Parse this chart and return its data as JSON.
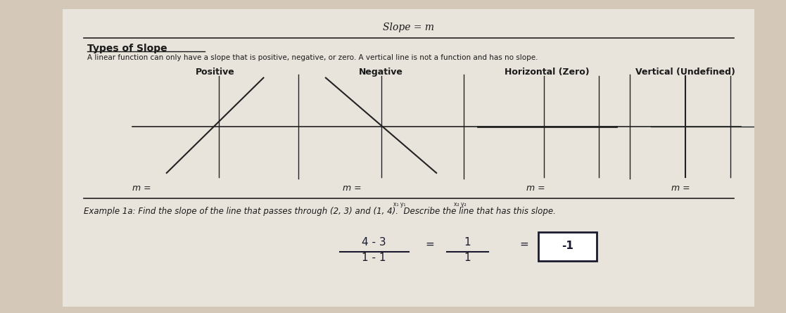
{
  "background_color": "#d4c8b8",
  "paper_color": "#e8e4dc",
  "title_top": "Slope = m",
  "section_title": "Types of Slope",
  "description": "A linear function can only have a slope that is positive, negative, or zero. A vertical line is not a function and has no slope.",
  "slope_types": [
    "Positive",
    "Negative",
    "Horizontal (Zero)",
    "Vertical (Undefined)"
  ],
  "m_labels": [
    "m =",
    "m =",
    "m =",
    "m ="
  ],
  "example_text": "Example 1a: Find the slope of the line that passes through (2, 3) and (1, 4).  Describe the line that has this slope.",
  "line_color": "#222222",
  "text_color": "#1a1a1a",
  "handwritten_color": "#1a1a2e"
}
